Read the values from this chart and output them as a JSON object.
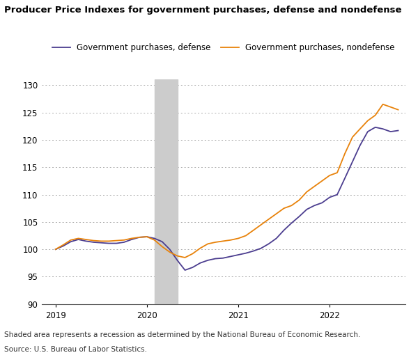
{
  "title": "Producer Price Indexes for government purchases, defense and nondefense",
  "legend_defense": "Government purchases, defense",
  "legend_nondefense": "Government purchases, nondefense",
  "footer_line1": "Shaded area represents a recession as determined by the National Bureau of Economic Research.",
  "footer_line2": "Source: U.S. Bureau of Labor Statistics.",
  "color_defense": "#4b3d8f",
  "color_nondefense": "#e8820a",
  "recession_color": "#cccccc",
  "recession_start": 2020.083,
  "recession_end": 2020.333,
  "ylim": [
    90,
    131
  ],
  "yticks": [
    90,
    95,
    100,
    105,
    110,
    115,
    120,
    125,
    130
  ],
  "xlim_start": 2018.85,
  "xlim_end": 2022.83,
  "defense_x": [
    2019.0,
    2019.083,
    2019.167,
    2019.25,
    2019.333,
    2019.417,
    2019.5,
    2019.583,
    2019.667,
    2019.75,
    2019.833,
    2019.917,
    2020.0,
    2020.083,
    2020.167,
    2020.25,
    2020.333,
    2020.417,
    2020.5,
    2020.583,
    2020.667,
    2020.75,
    2020.833,
    2020.917,
    2021.0,
    2021.083,
    2021.167,
    2021.25,
    2021.333,
    2021.417,
    2021.5,
    2021.583,
    2021.667,
    2021.75,
    2021.833,
    2021.917,
    2022.0,
    2022.083,
    2022.167,
    2022.25,
    2022.333,
    2022.417,
    2022.5,
    2022.583,
    2022.667,
    2022.75
  ],
  "defense_y": [
    100.0,
    100.6,
    101.4,
    101.8,
    101.5,
    101.3,
    101.2,
    101.1,
    101.1,
    101.3,
    101.8,
    102.2,
    102.3,
    102.0,
    101.4,
    100.0,
    98.0,
    96.2,
    96.7,
    97.5,
    98.0,
    98.3,
    98.4,
    98.7,
    99.0,
    99.3,
    99.7,
    100.2,
    101.0,
    102.0,
    103.5,
    104.8,
    106.0,
    107.3,
    108.0,
    108.5,
    109.5,
    110.0,
    113.0,
    116.0,
    119.0,
    121.5,
    122.3,
    122.0,
    121.5,
    121.7
  ],
  "nondefense_x": [
    2019.0,
    2019.083,
    2019.167,
    2019.25,
    2019.333,
    2019.417,
    2019.5,
    2019.583,
    2019.667,
    2019.75,
    2019.833,
    2019.917,
    2020.0,
    2020.083,
    2020.167,
    2020.25,
    2020.333,
    2020.417,
    2020.5,
    2020.583,
    2020.667,
    2020.75,
    2020.833,
    2020.917,
    2021.0,
    2021.083,
    2021.167,
    2021.25,
    2021.333,
    2021.417,
    2021.5,
    2021.583,
    2021.667,
    2021.75,
    2021.833,
    2021.917,
    2022.0,
    2022.083,
    2022.167,
    2022.25,
    2022.333,
    2022.417,
    2022.5,
    2022.583,
    2022.667,
    2022.75
  ],
  "nondefense_y": [
    100.0,
    100.8,
    101.7,
    102.0,
    101.8,
    101.6,
    101.5,
    101.5,
    101.6,
    101.7,
    102.0,
    102.2,
    102.3,
    101.7,
    100.5,
    99.5,
    98.8,
    98.5,
    99.2,
    100.2,
    101.0,
    101.3,
    101.5,
    101.7,
    102.0,
    102.5,
    103.5,
    104.5,
    105.5,
    106.5,
    107.5,
    108.0,
    109.0,
    110.5,
    111.5,
    112.5,
    113.5,
    114.0,
    117.5,
    120.5,
    122.0,
    123.5,
    124.5,
    126.5,
    126.0,
    125.5
  ]
}
